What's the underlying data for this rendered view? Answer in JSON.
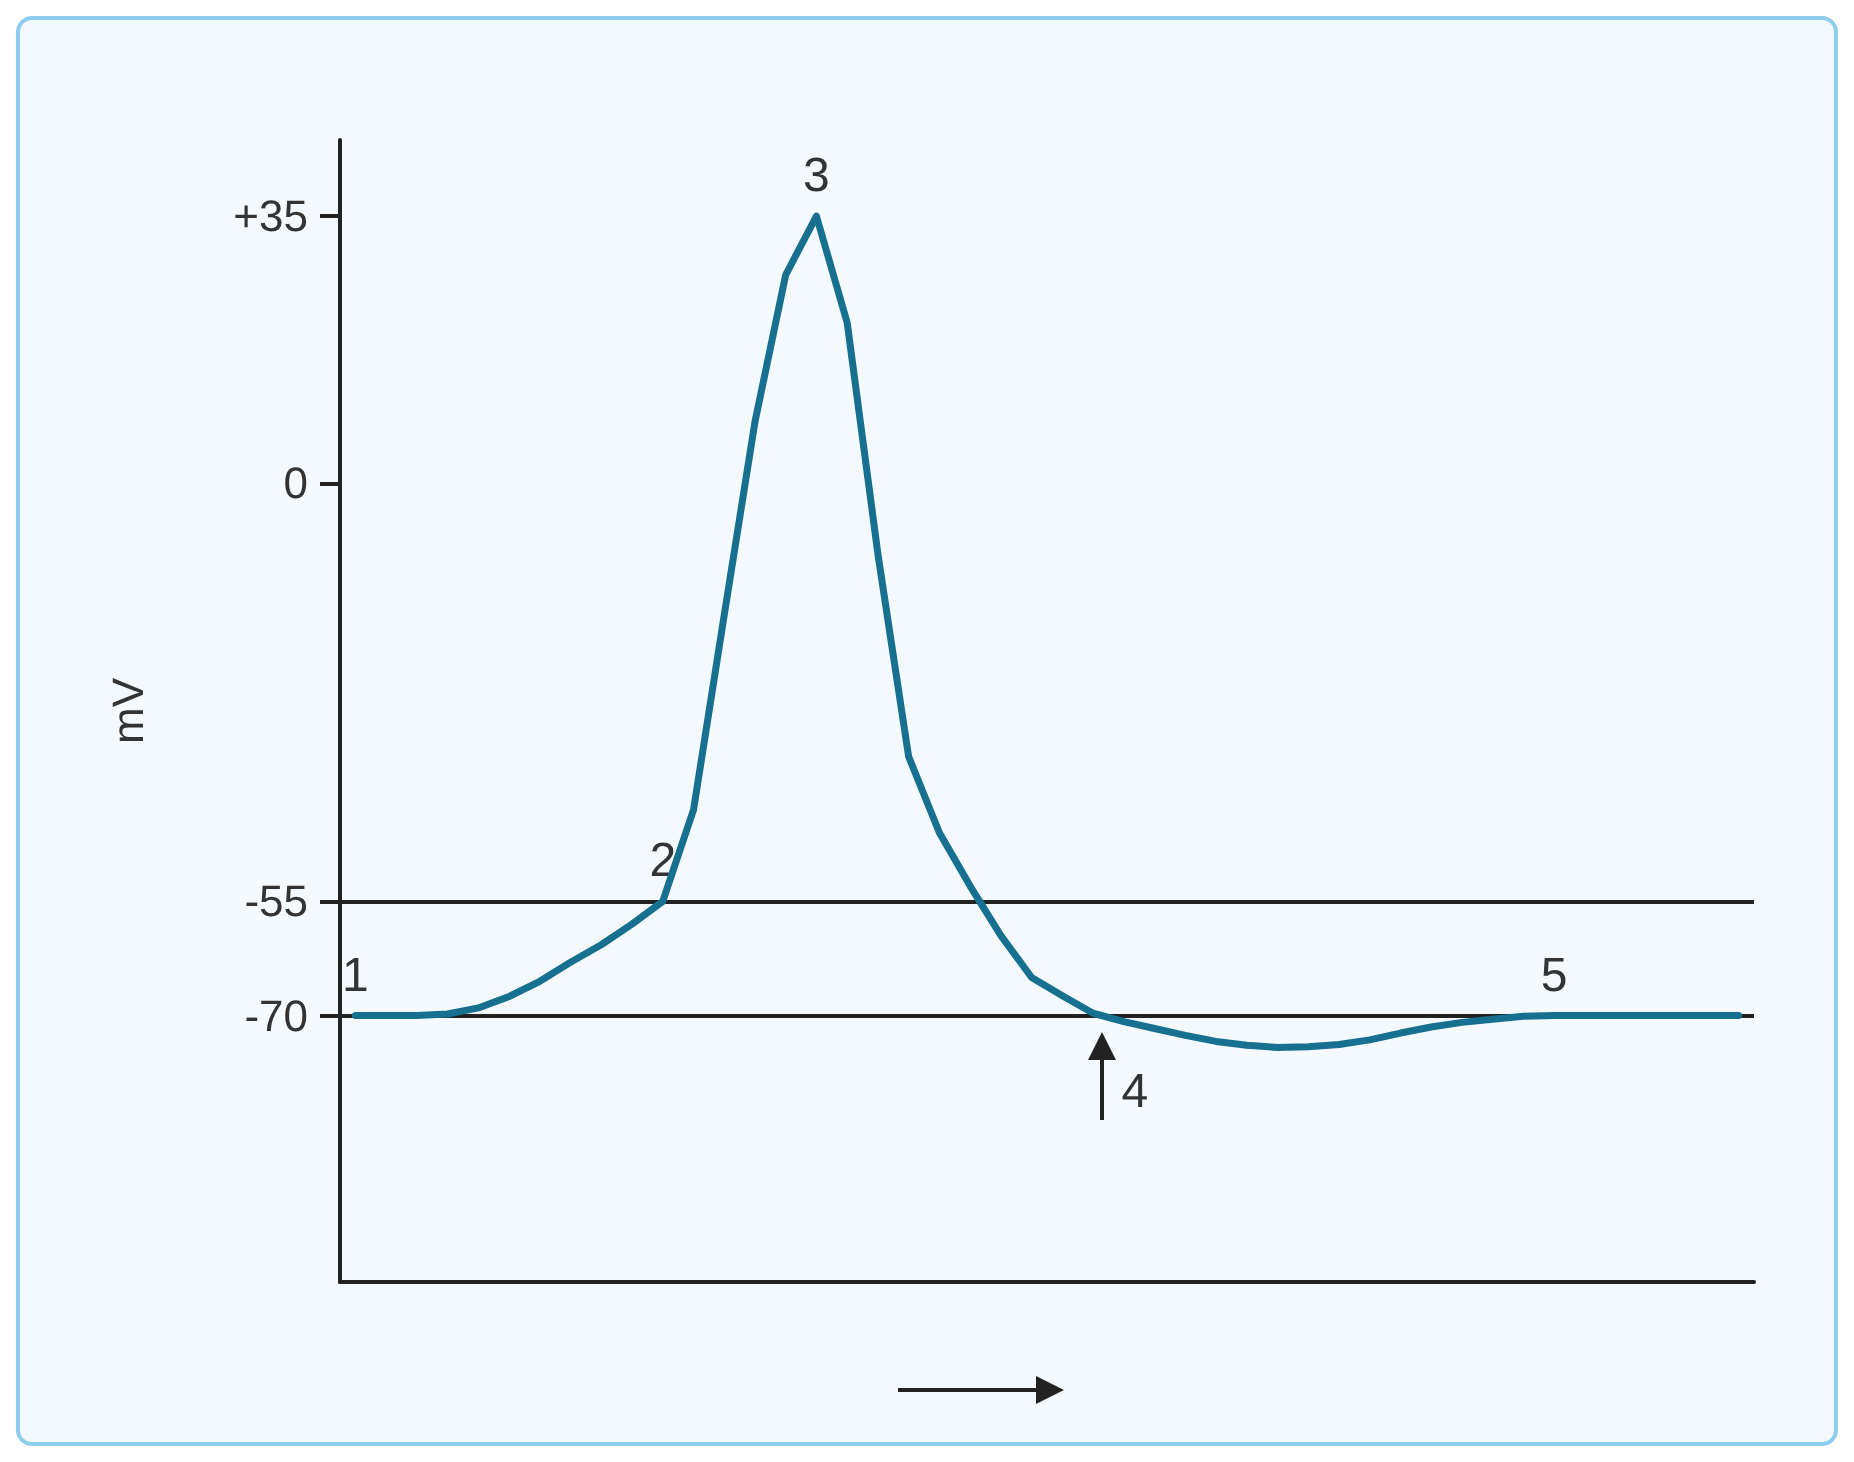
{
  "chart_data": {
    "type": "line",
    "ylabel": "mV",
    "categories": [
      null,
      null,
      null,
      null,
      null,
      null,
      null,
      null,
      null,
      null,
      null,
      null,
      null,
      null,
      null,
      null,
      null,
      null,
      null,
      null,
      null,
      null,
      null,
      null,
      null,
      null,
      null,
      null,
      null,
      null,
      null,
      null,
      null,
      null,
      null,
      null,
      null,
      null,
      null,
      null,
      null,
      null,
      null,
      null,
      null,
      null
    ],
    "series": [
      {
        "color": "#17708f",
        "values": [
          -70,
          -70,
          -70,
          -69.8,
          -69,
          -67.5,
          -65.5,
          -63,
          -60.7,
          -58,
          -55,
          -43,
          -17.4,
          8,
          27.3,
          35,
          21,
          -9.4,
          -36,
          -46,
          -53,
          -59.5,
          -65,
          -67.4,
          -69.7,
          -70.8,
          -71.7,
          -72.6,
          -73.4,
          -73.9,
          -74.2,
          -74.1,
          -73.8,
          -73.2,
          -72.3,
          -71.5,
          -70.9,
          -70.5,
          -70.1,
          -70,
          -70,
          -70,
          -70,
          -70,
          -70,
          -70
        ]
      }
    ],
    "ylim": [
      -105,
      45
    ],
    "yticks": [
      {
        "value": 35,
        "label": "+35"
      },
      0,
      -55,
      -70
    ],
    "annotations": [
      {
        "text": "1",
        "y": -70
      },
      {
        "text": "2",
        "y": -55
      },
      {
        "text": "3",
        "y": 35
      },
      {
        "text": "4",
        "y": -70
      },
      {
        "text": "5",
        "y": -70
      }
    ],
    "ref_lines": [
      {
        "axis": "y",
        "value": -55,
        "color": "#222222"
      },
      {
        "axis": "y",
        "value": -70,
        "color": "#222222"
      }
    ],
    "tick_labels": "y",
    "grid": false
  }
}
